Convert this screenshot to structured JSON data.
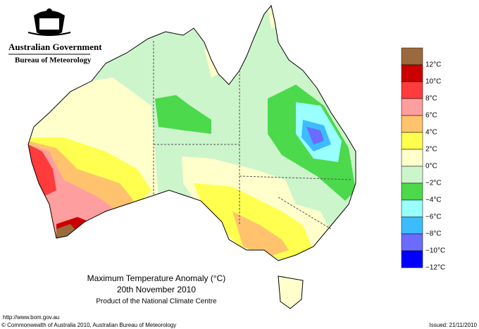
{
  "header": {
    "government": "Australian Government",
    "bureau": "Bureau of Meteorology"
  },
  "legend": {
    "colors": [
      "#9b6a3c",
      "#cc0000",
      "#ff3b3b",
      "#ff9e9e",
      "#ffc36e",
      "#ffff50",
      "#ffffcc",
      "#ccf5cc",
      "#4cd94c",
      "#99ffff",
      "#3cbcff",
      "#6b6bff",
      "#0000ff"
    ],
    "labels": [
      "12°C",
      "10°C",
      "8°C",
      "6°C",
      "4°C",
      "2°C",
      "0°C",
      "−2°C",
      "−4°C",
      "−6°C",
      "−8°C",
      "−10°C",
      "−12°C"
    ]
  },
  "caption": {
    "title": "Maximum Temperature Anomaly (°C)",
    "date": "20th November 2010",
    "product": "Product of the National Climate Centre"
  },
  "footer": {
    "url": "http://www.bom.gov.au",
    "copyright": "© Commonwealth of Australia 2010, Australian Bureau of Meteorology",
    "issued": "Issued: 21/11/2010"
  }
}
